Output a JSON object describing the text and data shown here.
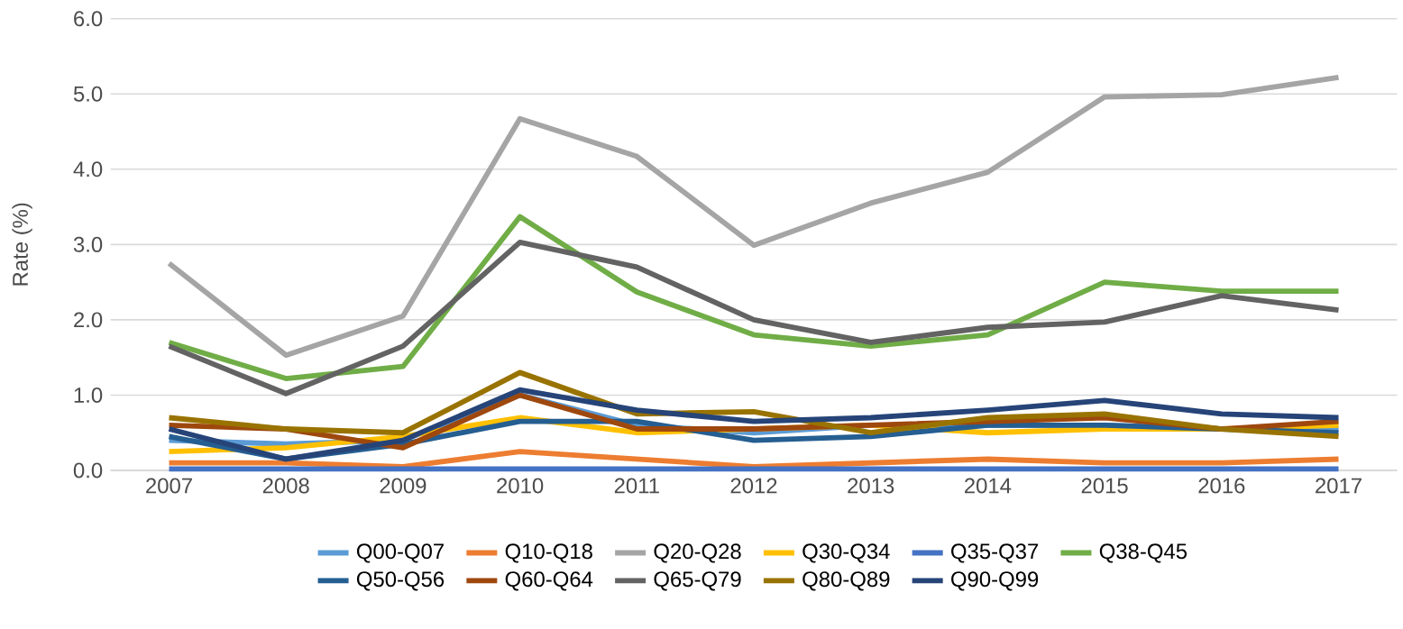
{
  "chart_data": {
    "type": "line",
    "ylabel": "Rate (%)",
    "categories": [
      "2007",
      "2008",
      "2009",
      "2010",
      "2011",
      "2012",
      "2013",
      "2014",
      "2015",
      "2016",
      "2017"
    ],
    "ylim": [
      0,
      6
    ],
    "yticks": [
      {
        "value": 0,
        "label": "0.0"
      },
      {
        "value": 1,
        "label": "1.0"
      },
      {
        "value": 2,
        "label": "2.0"
      },
      {
        "value": 3,
        "label": "3.0"
      },
      {
        "value": 4,
        "label": "4.0"
      },
      {
        "value": 5,
        "label": "5.0"
      },
      {
        "value": 6,
        "label": "6.0"
      }
    ],
    "grid": "y",
    "legend": "bottom",
    "marker": "none",
    "line_style": "solid",
    "series": [
      {
        "name": "Q00-Q07",
        "color": "#5b9bd5",
        "values": [
          0.4,
          0.35,
          0.4,
          1.0,
          0.6,
          0.5,
          0.6,
          0.6,
          0.6,
          0.55,
          0.55
        ]
      },
      {
        "name": "Q10-Q18",
        "color": "#ed7d31",
        "values": [
          0.1,
          0.1,
          0.05,
          0.25,
          0.15,
          0.05,
          0.1,
          0.15,
          0.1,
          0.1,
          0.15
        ]
      },
      {
        "name": "Q20-Q28",
        "color": "#a5a5a5",
        "values": [
          2.75,
          1.53,
          2.05,
          4.67,
          4.17,
          2.99,
          3.55,
          3.96,
          4.96,
          4.99,
          5.22
        ]
      },
      {
        "name": "Q30-Q34",
        "color": "#ffc000",
        "values": [
          0.25,
          0.3,
          0.45,
          0.7,
          0.5,
          0.55,
          0.6,
          0.5,
          0.55,
          0.55,
          0.6
        ]
      },
      {
        "name": "Q35-Q37",
        "color": "#4472c4",
        "values": [
          0.02,
          0.02,
          0.02,
          0.02,
          0.02,
          0.02,
          0.02,
          0.02,
          0.02,
          0.02,
          0.02
        ]
      },
      {
        "name": "Q38-Q45",
        "color": "#70ad47",
        "values": [
          1.7,
          1.22,
          1.38,
          3.37,
          2.37,
          1.8,
          1.65,
          1.8,
          2.5,
          2.38,
          2.38
        ]
      },
      {
        "name": "Q50-Q56",
        "color": "#255e91",
        "values": [
          0.45,
          0.15,
          0.35,
          0.65,
          0.65,
          0.4,
          0.45,
          0.6,
          0.6,
          0.55,
          0.5
        ]
      },
      {
        "name": "Q60-Q64",
        "color": "#9e480e",
        "values": [
          0.6,
          0.55,
          0.3,
          1.0,
          0.55,
          0.55,
          0.6,
          0.65,
          0.7,
          0.55,
          0.65
        ]
      },
      {
        "name": "Q65-Q79",
        "color": "#636363",
        "values": [
          1.65,
          1.02,
          1.65,
          3.03,
          2.7,
          2.0,
          1.7,
          1.9,
          1.97,
          2.32,
          2.13
        ]
      },
      {
        "name": "Q80-Q89",
        "color": "#997300",
        "values": [
          0.7,
          0.55,
          0.5,
          1.3,
          0.75,
          0.78,
          0.5,
          0.7,
          0.75,
          0.55,
          0.45
        ]
      },
      {
        "name": "Q90-Q99",
        "color": "#264478",
        "values": [
          0.55,
          0.15,
          0.4,
          1.07,
          0.8,
          0.65,
          0.7,
          0.8,
          0.93,
          0.75,
          0.7
        ]
      }
    ]
  }
}
